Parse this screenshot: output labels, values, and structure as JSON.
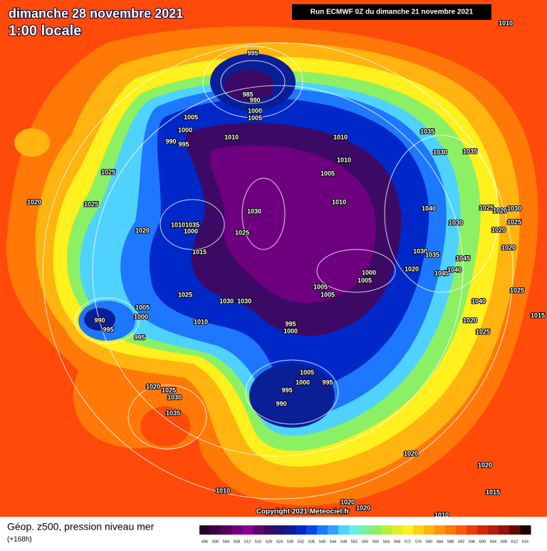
{
  "header": {
    "date": "dimanche 28 novembre 2021",
    "time": "1:00 locale",
    "run": "Run ECMWF 0Z du dimanche 21 novembre 2021",
    "copyright": "Copyright 2021 Meteociel.fr"
  },
  "legend": {
    "field": "Géop. z500, pression niveau mer",
    "lead": "(+168h)"
  },
  "isobar_labels": [
    "1010",
    "995",
    "985",
    "990",
    "1000",
    "1005",
    "1005",
    "1000",
    "990",
    "995",
    "1010",
    "1010",
    "1005",
    "1010",
    "1035",
    "1030",
    "1035",
    "1025",
    "1020",
    "1025",
    "1030",
    "1010",
    "1025",
    "1020",
    "1010",
    "1035",
    "1000",
    "1015",
    "1040",
    "1025",
    "1020",
    "1030",
    "1030",
    "1025",
    "1020",
    "1030",
    "1035",
    "1045",
    "1020",
    "1045",
    "1040",
    "1000",
    "1005",
    "1020",
    "1025",
    "1005",
    "1005",
    "1030",
    "1030",
    "1025",
    "1040",
    "990",
    "1005",
    "1000",
    "995",
    "995",
    "1010",
    "995",
    "1000",
    "1020",
    "1025",
    "1015",
    "1005",
    "1000",
    "995",
    "995",
    "990",
    "1020",
    "1025",
    "1030",
    "1035",
    "1020",
    "1020",
    "1010",
    "1015",
    "1020",
    "1020",
    "1010"
  ],
  "colorbar": {
    "labels": [
      496,
      500,
      504,
      508,
      512,
      516,
      520,
      524,
      528,
      532,
      536,
      540,
      544,
      548,
      552,
      556,
      560,
      564,
      568,
      572,
      576,
      580,
      584,
      588,
      592,
      596,
      600,
      604,
      608,
      612,
      616
    ],
    "colors": [
      "#2a0030",
      "#3c0040",
      "#550060",
      "#6e0080",
      "#8c0096",
      "#5a0a6e",
      "#3c0a64",
      "#1e1478",
      "#0a1e96",
      "#0028c8",
      "#0a46e6",
      "#1e78ff",
      "#32a0ff",
      "#50d2ff",
      "#64f0dc",
      "#78f0a0",
      "#8cf064",
      "#b4f03c",
      "#dcf028",
      "#fff01e",
      "#ffd214",
      "#ffb40f",
      "#ff960a",
      "#ff7808",
      "#ff5a0a",
      "#f03c0a",
      "#d2280a",
      "#b41e0a",
      "#961408",
      "#640a05",
      "#1e0000"
    ]
  }
}
